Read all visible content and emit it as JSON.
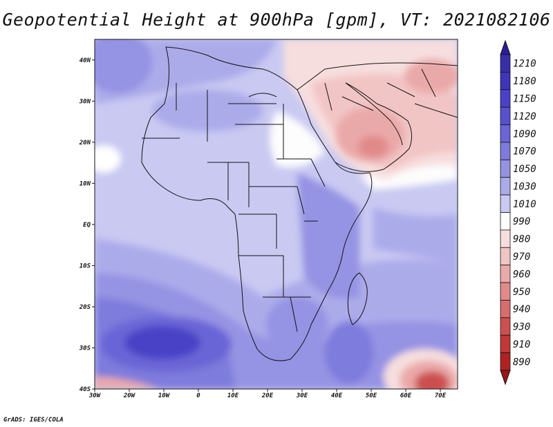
{
  "figure": {
    "title": "Geopotential Height at 900hPa [gpm], VT: 2021082106",
    "credit": "GrADS: IGES/COLA"
  },
  "map": {
    "lon_range": [
      -30,
      75
    ],
    "lat_range": [
      -40,
      45
    ],
    "lon_ticks": [
      {
        "value": -30,
        "label": "30W"
      },
      {
        "value": -20,
        "label": "20W"
      },
      {
        "value": -10,
        "label": "10W"
      },
      {
        "value": 0,
        "label": "0"
      },
      {
        "value": 10,
        "label": "10E"
      },
      {
        "value": 20,
        "label": "20E"
      },
      {
        "value": 30,
        "label": "30E"
      },
      {
        "value": 40,
        "label": "40E"
      },
      {
        "value": 50,
        "label": "50E"
      },
      {
        "value": 60,
        "label": "60E"
      },
      {
        "value": 70,
        "label": "70E"
      }
    ],
    "lat_ticks": [
      {
        "value": 40,
        "label": "40N"
      },
      {
        "value": 30,
        "label": "30N"
      },
      {
        "value": 20,
        "label": "20N"
      },
      {
        "value": 10,
        "label": "10N"
      },
      {
        "value": 0,
        "label": "EQ"
      },
      {
        "value": -10,
        "label": "10S"
      },
      {
        "value": -20,
        "label": "20S"
      },
      {
        "value": -30,
        "label": "30S"
      },
      {
        "value": -40,
        "label": "40S"
      }
    ]
  },
  "colorbar": {
    "levels": [
      {
        "label": "1210",
        "color": "#3a2ea8"
      },
      {
        "label": "1180",
        "color": "#3f35b8"
      },
      {
        "label": "1150",
        "color": "#4a42c6"
      },
      {
        "label": "1120",
        "color": "#5751cd"
      },
      {
        "label": "1090",
        "color": "#6a65d6"
      },
      {
        "label": "1070",
        "color": "#7e7bdc"
      },
      {
        "label": "1050",
        "color": "#9593e3"
      },
      {
        "label": "1030",
        "color": "#acabea"
      },
      {
        "label": "1010",
        "color": "#c9c9f2"
      },
      {
        "label": "990",
        "color": "#fdfdfd"
      },
      {
        "label": "980",
        "color": "#f7dede"
      },
      {
        "label": "970",
        "color": "#f2c5c5"
      },
      {
        "label": "960",
        "color": "#eaa9a9"
      },
      {
        "label": "950",
        "color": "#e18a8a"
      },
      {
        "label": "940",
        "color": "#d76d6d"
      },
      {
        "label": "930",
        "color": "#cc5050"
      },
      {
        "label": "910",
        "color": "#c03838"
      },
      {
        "label": "890",
        "color": "#b02222"
      }
    ],
    "top_color": "#2a1e98",
    "bottom_color": "#9a1414"
  },
  "chart_data": {
    "type": "heatmap",
    "title": "Geopotential Height at 900hPa [gpm], VT: 2021082106",
    "variable": "geopotential height",
    "units": "gpm",
    "level": "900hPa",
    "valid_time": "2021082106",
    "features": [
      {
        "region": "South Atlantic high",
        "lon": -12,
        "lat": -28,
        "value_range": [
          1150,
          1180
        ]
      },
      {
        "region": "Arabian Peninsula low",
        "lon": 45,
        "lat": 22,
        "value_range": [
          940,
          980
        ]
      },
      {
        "region": "Southern Indian Ocean low",
        "lon": 70,
        "lat": -39,
        "value_range": [
          890,
          940
        ]
      },
      {
        "region": "Southwest Atlantic low",
        "lon": -28,
        "lat": -39,
        "value_range": [
          950,
          990
        ]
      },
      {
        "region": "Equatorial Africa",
        "lon": 20,
        "lat": 0,
        "value_range": [
          1010,
          1050
        ]
      }
    ]
  }
}
